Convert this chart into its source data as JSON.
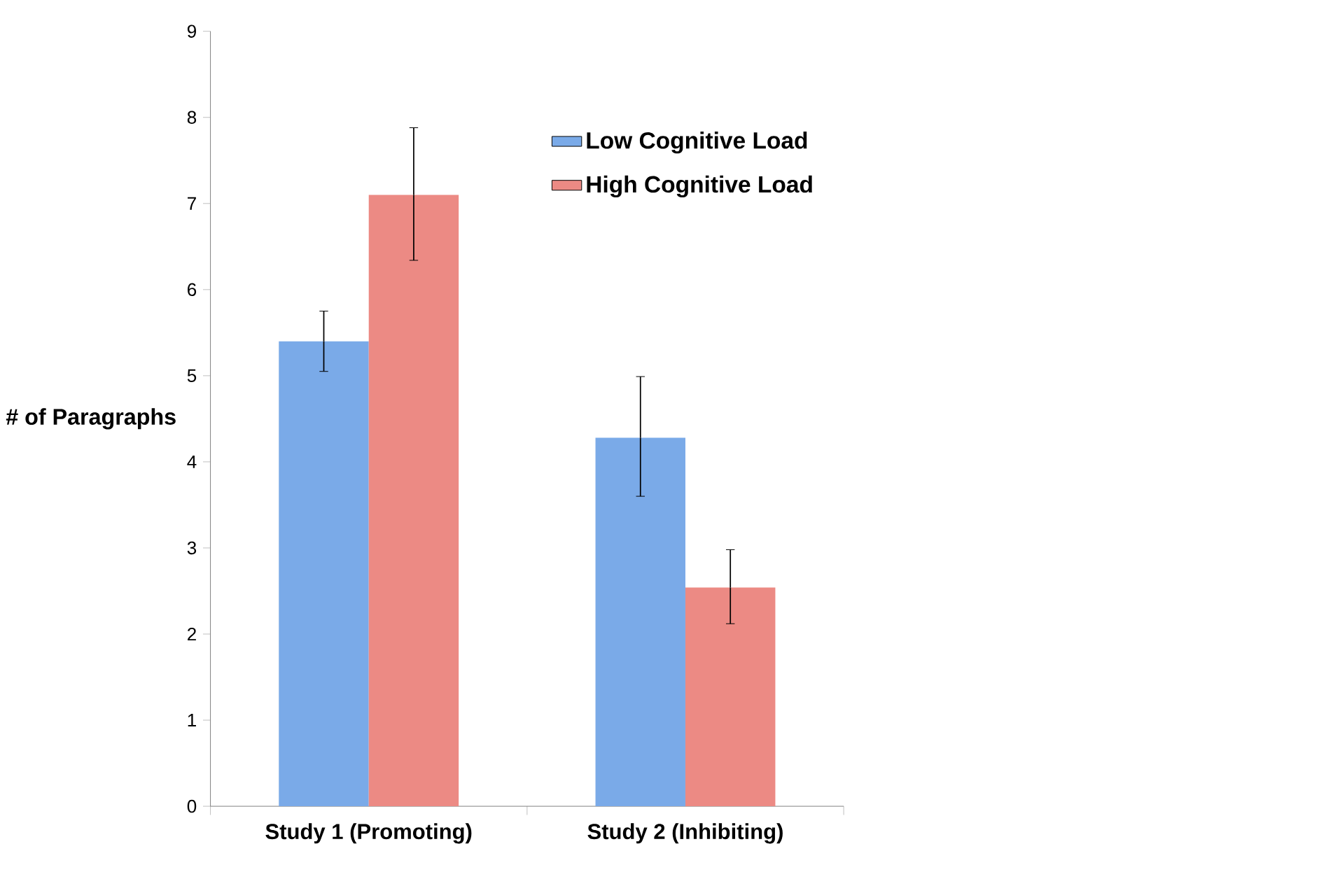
{
  "chart_data": {
    "type": "bar",
    "ylabel": "# of Paragraphs",
    "categories": [
      "Study 1 (Promoting)",
      "Study 2 (Inhibiting)"
    ],
    "series": [
      {
        "name": "Low Cognitive Load",
        "color": "#7aaae8",
        "values": [
          5.4,
          4.28
        ],
        "errors": [
          [
            5.05,
            5.75
          ],
          [
            3.6,
            4.99
          ]
        ]
      },
      {
        "name": "High Cognitive Load",
        "color": "#ec8a84",
        "values": [
          7.1,
          2.54
        ],
        "errors": [
          [
            6.34,
            7.88
          ],
          [
            2.12,
            2.98
          ]
        ]
      }
    ],
    "ylim": [
      0,
      9
    ],
    "yticks": [
      0,
      1,
      2,
      3,
      4,
      5,
      6,
      7,
      8,
      9
    ],
    "legend": "top right"
  }
}
